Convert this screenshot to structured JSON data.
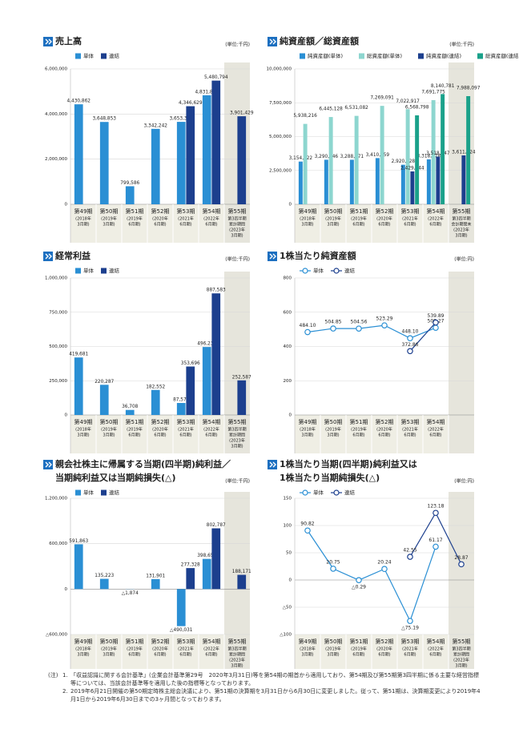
{
  "chart_data": [
    {
      "type": "bar",
      "title": [
        "売上高"
      ],
      "unit": "(単位:千円)",
      "categories": [
        "第49期",
        "第50期",
        "第51期",
        "第52期",
        "第53期",
        "第54期",
        "第55期"
      ],
      "sublabels": [
        [
          "(2018年",
          "3月期)"
        ],
        [
          "(2019年",
          "3月期)"
        ],
        [
          "(2019年",
          "6月期)"
        ],
        [
          "(2020年",
          "6月期)"
        ],
        [
          "(2021年",
          "6月期)"
        ],
        [
          "(2022年",
          "6月期)"
        ],
        [
          "第3四半期",
          "累計期間",
          "(2023年",
          "3月期)"
        ]
      ],
      "series": [
        {
          "name": "単体",
          "color": "#2a8fd4",
          "values": [
            4430862,
            3648853,
            799586,
            3342242,
            3653388,
            4831853,
            null
          ],
          "value_labels": [
            "4,430,862",
            "3,648,853",
            "799,586",
            "3,342,242",
            "3,653,388",
            "4,831,853",
            null
          ]
        },
        {
          "name": "連結",
          "color": "#1c3f8e",
          "values": [
            null,
            null,
            null,
            null,
            4346629,
            5480794,
            3901429
          ],
          "value_labels": [
            null,
            null,
            null,
            null,
            "4,346,629",
            "5,480,794",
            "3,901,429"
          ]
        }
      ],
      "ylim": [
        0,
        6000000
      ],
      "yticks": [
        0,
        {
          "value": 2000000,
          "label": "2,000,000"
        },
        {
          "value": 4000000,
          "label": "4,000,000"
        },
        {
          "value": 6000000,
          "label": "6,000,000"
        }
      ],
      "grid": true
    },
    {
      "type": "bar",
      "title": [
        "純資産額／総資産額"
      ],
      "unit": "(単位:千円)",
      "categories": [
        "第49期",
        "第50期",
        "第51期",
        "第52期",
        "第53期",
        "第54期",
        "第55期"
      ],
      "sublabels": [
        [
          "(2018年",
          "3月期)"
        ],
        [
          "(2019年",
          "3月期)"
        ],
        [
          "(2019年",
          "6月期)"
        ],
        [
          "(2020年",
          "6月期)"
        ],
        [
          "(2021年",
          "6月期)"
        ],
        [
          "(2022年",
          "6月期)"
        ],
        [
          "第3四半期",
          "会計期間末",
          "(2023年",
          "3月期)"
        ]
      ],
      "series": [
        {
          "name": "純資産額(単体)",
          "color": "#2a8fd4",
          "values": [
            3154922,
            3290146,
            3288271,
            3410359,
            2920328,
            3318978,
            null
          ],
          "value_labels": [
            "3,154,922",
            "3,290,146",
            "3,288,271",
            "3,410,359",
            "2,920,328",
            "3,318,978",
            null
          ]
        },
        {
          "name": "総資産額(単体)",
          "color": "#8dd6cf",
          "values": [
            5938216,
            6445128,
            6531082,
            7269091,
            7022917,
            7691775,
            null
          ],
          "value_labels": [
            "5,938,216",
            "6,445,128",
            "6,531,082",
            "7,269,091",
            "7,022,917",
            "7,691,775",
            null
          ]
        },
        {
          "name": "純資産額(連結)",
          "color": "#1c3f8e",
          "values": [
            null,
            null,
            null,
            null,
            2429444,
            3518547,
            3611224
          ],
          "value_labels": [
            null,
            null,
            null,
            null,
            "2,429,444",
            "3,518,547",
            "3,611,224"
          ]
        },
        {
          "name": "総資産額(連結)",
          "color": "#1aa18a",
          "values": [
            null,
            null,
            null,
            null,
            6568798,
            8140781,
            7988097
          ],
          "value_labels": [
            null,
            null,
            null,
            null,
            "6,568,798",
            "8,140,781",
            "7,988,097"
          ]
        }
      ],
      "ylim": [
        0,
        10000000
      ],
      "yticks": [
        0,
        {
          "value": 2500000,
          "label": "2,500,000"
        },
        {
          "value": 5000000,
          "label": "5,000,000"
        },
        {
          "value": 7500000,
          "label": "7,500,000"
        },
        {
          "value": 10000000,
          "label": "10,000,000"
        }
      ],
      "grid": true
    },
    {
      "type": "bar",
      "title": [
        "経常利益"
      ],
      "unit": "(単位:千円)",
      "categories": [
        "第49期",
        "第50期",
        "第51期",
        "第52期",
        "第53期",
        "第54期",
        "第55期"
      ],
      "sublabels": [
        [
          "(2018年",
          "3月期)"
        ],
        [
          "(2019年",
          "3月期)"
        ],
        [
          "(2019年",
          "6月期)"
        ],
        [
          "(2020年",
          "6月期)"
        ],
        [
          "(2021年",
          "6月期)"
        ],
        [
          "(2022年",
          "6月期)"
        ],
        [
          "第3四半期",
          "累計期間",
          "(2023年",
          "3月期)"
        ]
      ],
      "series": [
        {
          "name": "単体",
          "color": "#2a8fd4",
          "values": [
            419681,
            220287,
            36708,
            182552,
            87574,
            496234,
            null
          ],
          "value_labels": [
            "419,681",
            "220,287",
            "36,708",
            "182,552",
            "87,574",
            "496,234",
            null
          ]
        },
        {
          "name": "連結",
          "color": "#1c3f8e",
          "values": [
            null,
            null,
            null,
            null,
            353696,
            887583,
            252587
          ],
          "value_labels": [
            null,
            null,
            null,
            null,
            "353,696",
            "887,583",
            "252,587"
          ]
        }
      ],
      "ylim": [
        0,
        1000000
      ],
      "yticks": [
        0,
        {
          "value": 250000,
          "label": "250,000"
        },
        {
          "value": 500000,
          "label": "500,000"
        },
        {
          "value": 750000,
          "label": "750,000"
        },
        {
          "value": 1000000,
          "label": "1,000,000"
        }
      ],
      "grid": true
    },
    {
      "type": "line",
      "title": [
        "1株当たり純資産額"
      ],
      "unit": "(単位:円)",
      "categories": [
        "第49期",
        "第50期",
        "第51期",
        "第52期",
        "第53期",
        "第54期",
        null
      ],
      "sublabels": [
        [
          "(2018年",
          "3月期)"
        ],
        [
          "(2019年",
          "3月期)"
        ],
        [
          "(2019年",
          "6月期)"
        ],
        [
          "(2020年",
          "6月期)"
        ],
        [
          "(2021年",
          "6月期)"
        ],
        [
          "(2022年",
          "6月期)"
        ],
        null
      ],
      "series": [
        {
          "name": "単体",
          "color": "#2a8fd4",
          "values": [
            484.1,
            504.85,
            504.56,
            523.29,
            448.1,
            509.27,
            null
          ],
          "value_labels": [
            "484.10",
            "504.85",
            "504.56",
            "523.29",
            "448.10",
            "509.27",
            null
          ]
        },
        {
          "name": "連結",
          "color": "#1c3f8e",
          "values": [
            null,
            null,
            null,
            null,
            372.86,
            539.89,
            null
          ],
          "value_labels": [
            null,
            null,
            null,
            null,
            "372.86",
            "539.89",
            null
          ]
        }
      ],
      "ylim": [
        0,
        800
      ],
      "yticks": [
        0,
        200,
        400,
        600,
        800
      ],
      "grid": true
    },
    {
      "type": "bar",
      "title": [
        "親会社株主に帰属する当期(四半期)純利益／",
        "当期純利益又は当期純損失(△)"
      ],
      "unit": "(単位:千円)",
      "categories": [
        "第49期",
        "第50期",
        "第51期",
        "第52期",
        "第53期",
        "第54期",
        "第55期"
      ],
      "sublabels": [
        [
          "(2018年",
          "3月期)"
        ],
        [
          "(2019年",
          "3月期)"
        ],
        [
          "(2019年",
          "6月期)"
        ],
        [
          "(2020年",
          "6月期)"
        ],
        [
          "(2021年",
          "6月期)"
        ],
        [
          "(2022年",
          "6月期)"
        ],
        [
          "第3四半期",
          "累計期間",
          "(2023年",
          "3月期)"
        ]
      ],
      "series": [
        {
          "name": "単体",
          "color": "#2a8fd4",
          "values": [
            591863,
            135223,
            -1874,
            131901,
            -490031,
            398650,
            null
          ],
          "value_labels": [
            "591,863",
            "135,223",
            "△1,874",
            "131,901",
            "△490,031",
            "398,650",
            null
          ]
        },
        {
          "name": "連結",
          "color": "#1c3f8e",
          "values": [
            null,
            null,
            null,
            null,
            277328,
            802787,
            188171
          ],
          "value_labels": [
            null,
            null,
            null,
            null,
            "277,328",
            "802,787",
            "188,171"
          ]
        }
      ],
      "ylim": [
        -600000,
        1200000
      ],
      "yticks": [
        {
          "value": -600000,
          "label": "△600,000"
        },
        0,
        {
          "value": 600000,
          "label": "600,000"
        },
        {
          "value": 1200000,
          "label": "1,200,000"
        }
      ],
      "grid": true
    },
    {
      "type": "line",
      "title": [
        "1株当たり当期(四半期)純利益又は",
        "1株当たり当期純損失(△)"
      ],
      "unit": "(単位:円)",
      "categories": [
        "第49期",
        "第50期",
        "第51期",
        "第52期",
        "第53期",
        "第54期",
        "第55期"
      ],
      "sublabels": [
        [
          "(2018年",
          "3月期)"
        ],
        [
          "(2019年",
          "3月期)"
        ],
        [
          "(2019年",
          "6月期)"
        ],
        [
          "(2020年",
          "6月期)"
        ],
        [
          "(2021年",
          "6月期)"
        ],
        [
          "(2022年",
          "6月期)"
        ],
        [
          "第3四半期",
          "累計期間",
          "(2023年",
          "3月期)"
        ]
      ],
      "series": [
        {
          "name": "単体",
          "color": "#2a8fd4",
          "values": [
            90.82,
            20.75,
            -0.29,
            20.24,
            -75.19,
            61.17,
            null
          ],
          "value_labels": [
            "90.82",
            "20.75",
            "△0.29",
            "20.24",
            "△75.19",
            "61.17",
            null
          ]
        },
        {
          "name": "連結",
          "color": "#1c3f8e",
          "values": [
            null,
            null,
            null,
            null,
            42.55,
            123.18,
            28.87
          ],
          "value_labels": [
            null,
            null,
            null,
            null,
            "42.55",
            "123.18",
            "28.87"
          ]
        }
      ],
      "ylim": [
        -100,
        150
      ],
      "yticks": [
        {
          "value": -100,
          "label": "△100"
        },
        {
          "value": -50,
          "label": "△50"
        },
        0,
        50,
        100,
        150
      ],
      "grid": true
    }
  ],
  "notes": {
    "label": "(注)",
    "items": [
      {
        "number": "1.",
        "text": "「収益認識に関する会計基準」(企業会計基準第29号　2020年3月31日)等を第54期の期首から適用しており、第54期及び第55期第3四半期に係る主要な経営指標等については、当該会計基準等を適用した後の指標等となっております。"
      },
      {
        "number": "2.",
        "text": "2019年6月21日開催の第50期定時株主総会決議により、第51期の決算期を3月31日から6月30日に変更しました。従って、第51期は、決算期変更により2019年4月1日から2019年6月30日までの3ヶ月間となっております。"
      }
    ]
  }
}
